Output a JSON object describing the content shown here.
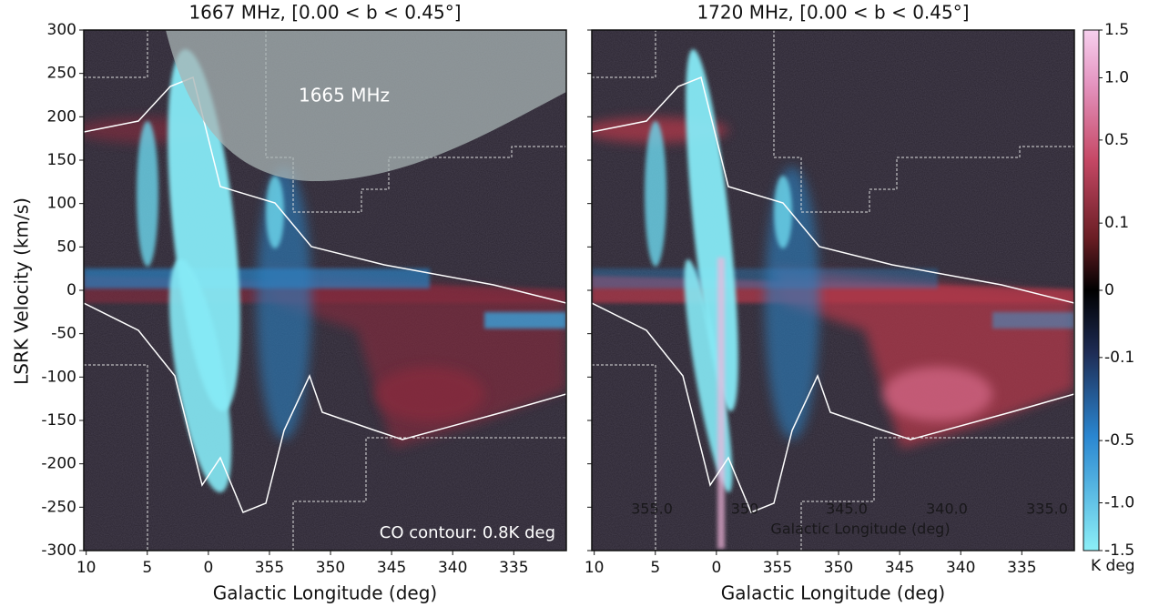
{
  "chart_data": [
    {
      "type": "image",
      "title": "1667 MHz, [0.00 < b < 0.45°]",
      "xlabel": "Galactic Longitude (deg)",
      "ylabel": "LSRK Velocity (km/s)",
      "xlim": [
        10.2,
        -29.3
      ],
      "ylim": [
        -300,
        300
      ],
      "xticks": [
        10,
        5,
        0,
        {
          "value": -5,
          "label": "355"
        },
        {
          "value": -10,
          "label": "350"
        },
        {
          "value": -15,
          "label": "345"
        },
        {
          "value": -20,
          "label": "340"
        },
        {
          "value": -25,
          "label": "335"
        }
      ],
      "yticks": [
        -300,
        -250,
        -200,
        -150,
        -100,
        -50,
        0,
        50,
        100,
        150,
        200,
        250,
        300
      ],
      "annotations": [
        "1665 MHz",
        "CO contour: 0.8K deg"
      ]
    },
    {
      "type": "image",
      "title": "1720 MHz, [0.00 < b < 0.45°]",
      "xlabel": "Galactic Longitude (deg)",
      "xlim": [
        10.2,
        -29.3
      ],
      "ylim": [
        -300,
        300
      ],
      "xticks": [
        10,
        5,
        0,
        {
          "value": -5,
          "label": "355"
        },
        {
          "value": -10,
          "label": "350"
        },
        {
          "value": -15,
          "label": "345"
        },
        {
          "value": -20,
          "label": "340"
        },
        {
          "value": -25,
          "label": "335"
        }
      ],
      "yticks": [
        -300,
        -250,
        -200,
        -150,
        -100,
        -50,
        0,
        50,
        100,
        150,
        200,
        250,
        300
      ],
      "inset_xtick_labels": [
        "355.0",
        "350",
        "345.0",
        "340.0",
        "335.0"
      ],
      "inset_xlabel": "Galactic Longitude (deg)",
      "colorbar": {
        "label": "K deg",
        "scale": "sqrt",
        "lim": [
          -1.5,
          1.5
        ],
        "ticks": [
          1.5,
          {
            "value": 1,
            "label": "1.0"
          },
          0.5,
          0.1,
          0,
          -0.1,
          -0.5,
          {
            "value": -1,
            "label": "-1.0"
          },
          -1.5
        ]
      }
    }
  ]
}
